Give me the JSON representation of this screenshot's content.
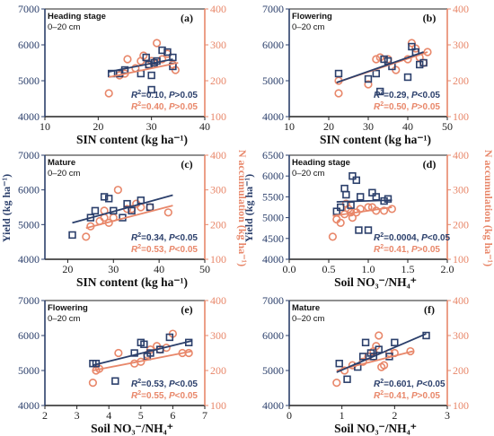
{
  "figure": {
    "colors": {
      "yield": "#2b3f6b",
      "n_accum": "#e8876a",
      "axis": "#222222"
    },
    "y_left_label": "Yield  (kg ha⁻¹)",
    "y_right_label": "N accumulation  (kg ha⁻¹)"
  },
  "chart_data": [
    {
      "type": "scatter",
      "panel": "(a)",
      "stage": "Heading stage",
      "depth": "0–20 cm",
      "xlabel": "SIN content  (kg ha⁻¹)",
      "xlim": [
        10,
        40
      ],
      "xticks": [
        "10",
        "20",
        "30",
        "40"
      ],
      "ylim_left": [
        4000,
        7000
      ],
      "yticks_left": [
        "4000",
        "5000",
        "6000",
        "7000"
      ],
      "ylim_right": [
        100,
        400
      ],
      "yticks_right": [
        "100",
        "200",
        "300",
        "400"
      ],
      "yield_points": [
        [
          22.5,
          5200
        ],
        [
          24,
          5200
        ],
        [
          25,
          5300
        ],
        [
          28,
          5200
        ],
        [
          29,
          5650
        ],
        [
          29.5,
          5450
        ],
        [
          30,
          5150
        ],
        [
          30,
          4750
        ],
        [
          30.5,
          5500
        ],
        [
          31,
          5550
        ],
        [
          32,
          5850
        ],
        [
          33,
          5800
        ],
        [
          34,
          5400
        ],
        [
          34,
          5650
        ]
      ],
      "yield_fit": [
        [
          22,
          5250
        ],
        [
          34,
          5600
        ]
      ],
      "n_points": [
        [
          22,
          165
        ],
        [
          24,
          215
        ],
        [
          25,
          220
        ],
        [
          25.5,
          260
        ],
        [
          27,
          235
        ],
        [
          28,
          255
        ],
        [
          28.5,
          270
        ],
        [
          29.5,
          245
        ],
        [
          30,
          255
        ],
        [
          30.5,
          250
        ],
        [
          31,
          305
        ],
        [
          32,
          260
        ],
        [
          33,
          275
        ],
        [
          34,
          245
        ],
        [
          34.5,
          230
        ]
      ],
      "n_fit": [
        [
          22,
          210
        ],
        [
          35,
          250
        ]
      ],
      "stats": {
        "yield_label": "R2=0.10, P>0.05",
        "n_label": "R2=0.40, P>0.05"
      }
    },
    {
      "type": "scatter",
      "panel": "(b)",
      "stage": "Flowering",
      "depth": "0–20 cm",
      "xlabel": "SIN content  (kg ha⁻¹)",
      "xlim": [
        10,
        50
      ],
      "xticks": [
        "10",
        "20",
        "30",
        "40",
        "50"
      ],
      "ylim_left": [
        4000,
        7000
      ],
      "yticks_left": [
        "4000",
        "5000",
        "6000",
        "7000"
      ],
      "ylim_right": [
        100,
        400
      ],
      "yticks_right": [
        "100",
        "200",
        "300",
        "400"
      ],
      "yield_points": [
        [
          22.5,
          5200
        ],
        [
          30,
          5050
        ],
        [
          32,
          5200
        ],
        [
          33,
          4700
        ],
        [
          34,
          5600
        ],
        [
          35,
          5550
        ],
        [
          36,
          5400
        ],
        [
          40,
          5100
        ],
        [
          41,
          5950
        ],
        [
          42,
          5800
        ],
        [
          43,
          5450
        ],
        [
          44,
          5500
        ]
      ],
      "yield_fit": [
        [
          22,
          4950
        ],
        [
          44,
          5800
        ]
      ],
      "n_points": [
        [
          22.5,
          165
        ],
        [
          22.5,
          200
        ],
        [
          30,
          190
        ],
        [
          32,
          260
        ],
        [
          33,
          265
        ],
        [
          35,
          260
        ],
        [
          37,
          230
        ],
        [
          40,
          260
        ],
        [
          41,
          305
        ],
        [
          42,
          290
        ],
        [
          43,
          265
        ],
        [
          44,
          250
        ],
        [
          45,
          280
        ]
      ],
      "n_fit": [
        [
          22,
          195
        ],
        [
          45,
          280
        ]
      ],
      "stats": {
        "yield_label": "R2=0.29, P<0.05",
        "n_label": "R2=0.50, P>0.05"
      }
    },
    {
      "type": "scatter",
      "panel": "(c)",
      "stage": "Mature",
      "depth": "0–20 cm",
      "xlabel": "SIN content  (kg ha⁻¹)",
      "xlim": [
        15,
        50
      ],
      "xticks": [
        "20",
        "30",
        "40",
        "50"
      ],
      "ylim_left": [
        4000,
        7000
      ],
      "yticks_left": [
        "4000",
        "5000",
        "6000",
        "7000"
      ],
      "ylim_right": [
        100,
        400
      ],
      "yticks_right": [
        "100",
        "200",
        "300",
        "400"
      ],
      "yield_points": [
        [
          21,
          4700
        ],
        [
          25,
          5200
        ],
        [
          26,
          5400
        ],
        [
          28,
          5800
        ],
        [
          29,
          5750
        ],
        [
          30,
          5400
        ],
        [
          32,
          5200
        ],
        [
          33,
          5600
        ],
        [
          34,
          5400
        ],
        [
          36,
          5700
        ],
        [
          38,
          5500
        ]
      ],
      "yield_fit": [
        [
          21,
          5050
        ],
        [
          43,
          5850
        ]
      ],
      "n_points": [
        [
          24,
          165
        ],
        [
          25,
          195
        ],
        [
          27,
          210
        ],
        [
          28,
          240
        ],
        [
          28,
          220
        ],
        [
          29,
          205
        ],
        [
          30,
          220
        ],
        [
          31,
          300
        ],
        [
          33,
          245
        ],
        [
          34,
          245
        ],
        [
          35,
          260
        ],
        [
          36,
          250
        ],
        [
          38,
          250
        ],
        [
          42,
          235
        ]
      ],
      "n_fit": [
        [
          24,
          190
        ],
        [
          43,
          255
        ]
      ],
      "stats": {
        "yield_label": "R2=0.34, P<0.05",
        "n_label": "R2=0.53, P<0.05"
      }
    },
    {
      "type": "scatter",
      "panel": "(d)",
      "stage": "Heading stage",
      "depth": "0–20 cm",
      "xlabel": "Soil NO₃⁻/NH₄⁺",
      "xlim": [
        0,
        2.0
      ],
      "xticks": [
        "0.0",
        "0.5",
        "1.0",
        "1.5",
        "2.0"
      ],
      "ylim_left": [
        4000,
        6500
      ],
      "yticks_left": [
        "4000",
        "4500",
        "5000",
        "5500",
        "6000",
        "6500"
      ],
      "ylim_right": [
        100,
        400
      ],
      "yticks_right": [
        "100",
        "200",
        "300",
        "400"
      ],
      "yield_points": [
        [
          0.6,
          5150
        ],
        [
          0.65,
          5250
        ],
        [
          0.7,
          5700
        ],
        [
          0.72,
          5550
        ],
        [
          0.78,
          5300
        ],
        [
          0.8,
          6000
        ],
        [
          0.85,
          5900
        ],
        [
          0.88,
          4700
        ],
        [
          0.9,
          5500
        ],
        [
          1.0,
          4700
        ],
        [
          1.05,
          5600
        ],
        [
          1.1,
          5500
        ],
        [
          1.2,
          5400
        ],
        [
          1.25,
          5450
        ]
      ],
      "yield_fit": [
        [
          0.6,
          5380
        ],
        [
          1.3,
          5420
        ]
      ],
      "n_points": [
        [
          0.55,
          165
        ],
        [
          0.6,
          215
        ],
        [
          0.65,
          205
        ],
        [
          0.7,
          230
        ],
        [
          0.72,
          260
        ],
        [
          0.75,
          245
        ],
        [
          0.78,
          235
        ],
        [
          0.8,
          220
        ],
        [
          0.85,
          235
        ],
        [
          0.9,
          245
        ],
        [
          1.0,
          250
        ],
        [
          1.05,
          250
        ],
        [
          1.1,
          240
        ],
        [
          1.2,
          240
        ],
        [
          1.3,
          245
        ]
      ],
      "n_fit": [
        [
          0.55,
          225
        ],
        [
          1.3,
          250
        ]
      ],
      "stats": {
        "yield_label": "R2=0.0004, P<0.05",
        "n_label": "R2=0.41, P>0.05"
      }
    },
    {
      "type": "scatter",
      "panel": "(e)",
      "stage": "Flowering",
      "depth": "0–20 cm",
      "xlabel": "Soil NO₃⁻/NH₄⁺",
      "xlim": [
        2,
        7
      ],
      "xticks": [
        "2",
        "3",
        "4",
        "5",
        "6",
        "7"
      ],
      "ylim_left": [
        4000,
        7000
      ],
      "yticks_left": [
        "4000",
        "5000",
        "6000",
        "7000"
      ],
      "ylim_right": [
        100,
        400
      ],
      "yticks_right": [
        "100",
        "200",
        "300",
        "400"
      ],
      "yield_points": [
        [
          3.5,
          5200
        ],
        [
          3.6,
          5200
        ],
        [
          4.2,
          4700
        ],
        [
          4.8,
          5500
        ],
        [
          5.0,
          5800
        ],
        [
          5.1,
          5750
        ],
        [
          5.2,
          5400
        ],
        [
          5.3,
          5500
        ],
        [
          5.6,
          5600
        ],
        [
          5.9,
          5950
        ],
        [
          6.5,
          5800
        ]
      ],
      "yield_fit": [
        [
          3.5,
          5150
        ],
        [
          6.6,
          5850
        ]
      ],
      "n_points": [
        [
          3.5,
          165
        ],
        [
          3.6,
          200
        ],
        [
          3.7,
          205
        ],
        [
          4.3,
          250
        ],
        [
          4.8,
          220
        ],
        [
          5.0,
          225
        ],
        [
          5.2,
          245
        ],
        [
          5.3,
          260
        ],
        [
          5.5,
          270
        ],
        [
          5.6,
          260
        ],
        [
          5.8,
          265
        ],
        [
          6.0,
          305
        ],
        [
          6.3,
          250
        ],
        [
          6.5,
          250
        ]
      ],
      "n_fit": [
        [
          3.5,
          200
        ],
        [
          6.6,
          255
        ]
      ],
      "stats": {
        "yield_label": "R2=0.53, P<0.05",
        "n_label": "R2=0.55, P<0.05"
      }
    },
    {
      "type": "scatter",
      "panel": "(f)",
      "stage": "Mature",
      "depth": "0–20 cm",
      "xlabel": "Soil NO₃⁻/NH₄⁺",
      "xlim": [
        0,
        3
      ],
      "xticks": [
        "0",
        "1",
        "2",
        "3"
      ],
      "ylim_left": [
        4000,
        7000
      ],
      "yticks_left": [
        "4000",
        "5000",
        "6000",
        "7000"
      ],
      "ylim_right": [
        100,
        400
      ],
      "yticks_right": [
        "100",
        "200",
        "300",
        "400"
      ],
      "yield_points": [
        [
          0.95,
          5200
        ],
        [
          1.1,
          4750
        ],
        [
          1.3,
          5100
        ],
        [
          1.4,
          5400
        ],
        [
          1.45,
          5800
        ],
        [
          1.55,
          5500
        ],
        [
          1.6,
          5400
        ],
        [
          1.7,
          5600
        ],
        [
          1.9,
          5400
        ],
        [
          2.0,
          5800
        ],
        [
          2.6,
          6000
        ]
      ],
      "yield_fit": [
        [
          0.9,
          4950
        ],
        [
          2.6,
          6050
        ]
      ],
      "n_points": [
        [
          0.9,
          165
        ],
        [
          1.05,
          200
        ],
        [
          1.2,
          215
        ],
        [
          1.4,
          225
        ],
        [
          1.5,
          240
        ],
        [
          1.6,
          255
        ],
        [
          1.65,
          270
        ],
        [
          1.7,
          300
        ],
        [
          1.75,
          210
        ],
        [
          1.8,
          215
        ],
        [
          1.9,
          250
        ],
        [
          2.0,
          250
        ],
        [
          2.3,
          255
        ]
      ],
      "n_fit": [
        [
          0.9,
          200
        ],
        [
          2.35,
          255
        ]
      ],
      "stats": {
        "yield_label": "R2=0.601, P<0.05",
        "n_label": "R2=0.41, P>0.05"
      }
    }
  ]
}
